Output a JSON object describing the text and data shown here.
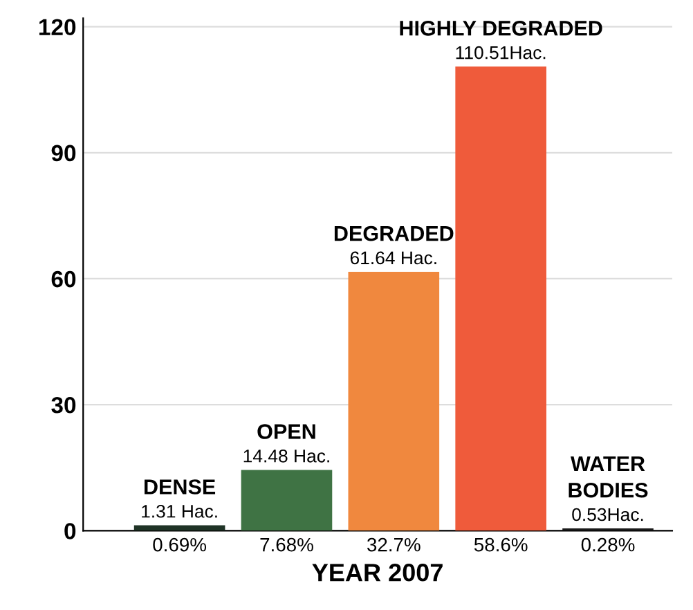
{
  "chart_data": {
    "type": "bar",
    "xlabel": "YEAR 2007",
    "categories": [
      "0.69%",
      "7.68%",
      "32.7%",
      "58.6%",
      "0.28%"
    ],
    "values": [
      1.31,
      14.48,
      61.64,
      110.51,
      0.53
    ],
    "colors": [
      "#1f3326",
      "#3f7344",
      "#f0883e",
      "#ef5b3b",
      "#1a1a1a"
    ],
    "value_labels": [
      "1.31 Hac.",
      "14.48 Hac.",
      "61.64 Hac.",
      "110.51Hac.",
      "0.53Hac."
    ],
    "annotations": [
      {
        "text": "DENSE",
        "x": "0.69%",
        "y": 1.31
      },
      {
        "text": "OPEN",
        "x": "7.68%",
        "y": 14.48
      },
      {
        "text": "DEGRADED",
        "x": "32.7%",
        "y": 61.64
      },
      {
        "text": "HIGHLY DEGRADED",
        "x": "58.6%",
        "y": 110.51
      },
      {
        "text": "WATER",
        "x": "0.28%",
        "y": 0.53
      },
      {
        "text": "BODIES",
        "x": "0.28%",
        "y": 0.53
      }
    ],
    "ylim": [
      0,
      122
    ],
    "yticks": [
      0,
      30,
      60,
      90,
      120
    ],
    "grid": "y"
  }
}
